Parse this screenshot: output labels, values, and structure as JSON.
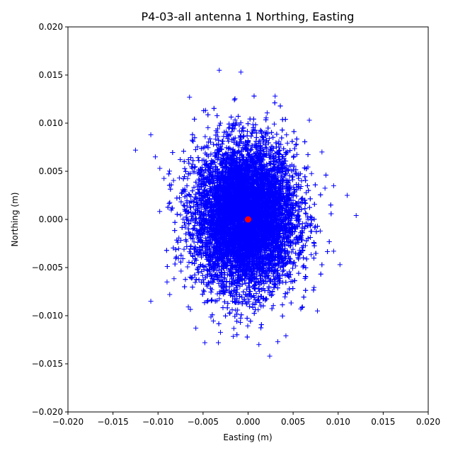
{
  "chart_data": {
    "type": "scatter",
    "title": "P4-03-all antenna 1 Northing, Easting",
    "xlabel": "Easting (m)",
    "ylabel": "Northing (m)",
    "xlim": [
      -0.02,
      0.02
    ],
    "ylim": [
      -0.02,
      0.02
    ],
    "xticks": [
      "−0.020",
      "−0.015",
      "−0.010",
      "−0.005",
      "0.000",
      "0.005",
      "0.010",
      "0.015",
      "0.020"
    ],
    "yticks": [
      "−0.020",
      "−0.015",
      "−0.010",
      "−0.005",
      "0.000",
      "0.005",
      "0.010",
      "0.015",
      "0.020"
    ],
    "grid": false,
    "series": [
      {
        "marker": "+",
        "color": "#0000ff",
        "distribution": {
          "center": [
            -0.0003,
            0.0003
          ],
          "std": [
            0.0028,
            0.0037
          ],
          "points_shown": 12000
        },
        "outliers": [
          [
            -0.0125,
            0.0072
          ],
          [
            -0.0108,
            0.0088
          ],
          [
            -0.0103,
            0.0065
          ],
          [
            -0.0098,
            0.0053
          ],
          [
            -0.0108,
            -0.0085
          ],
          [
            -0.009,
            -0.0065
          ],
          [
            -0.0058,
            -0.0113
          ],
          [
            -0.0048,
            -0.0128
          ],
          [
            -0.0033,
            -0.0128
          ],
          [
            -0.0032,
            0.0155
          ],
          [
            -0.0008,
            0.0153
          ],
          [
            0.0012,
            -0.013
          ],
          [
            0.0024,
            -0.0142
          ],
          [
            0.0033,
            -0.0127
          ],
          [
            0.0042,
            -0.0121
          ],
          [
            0.0068,
            0.0103
          ],
          [
            0.0082,
            0.007
          ],
          [
            0.0095,
            0.0035
          ],
          [
            0.011,
            0.0025
          ],
          [
            0.012,
            0.0004
          ],
          [
            0.0102,
            -0.0047
          ],
          [
            0.0095,
            -0.0033
          ],
          [
            -0.0087,
            -0.0078
          ],
          [
            0.003,
            0.0128
          ],
          [
            -0.0065,
            0.0127
          ],
          [
            0.0077,
            -0.0095
          ]
        ]
      },
      {
        "marker": "o",
        "color": "#ff0000",
        "points": [
          [
            0.0,
            0.0
          ]
        ]
      }
    ]
  }
}
